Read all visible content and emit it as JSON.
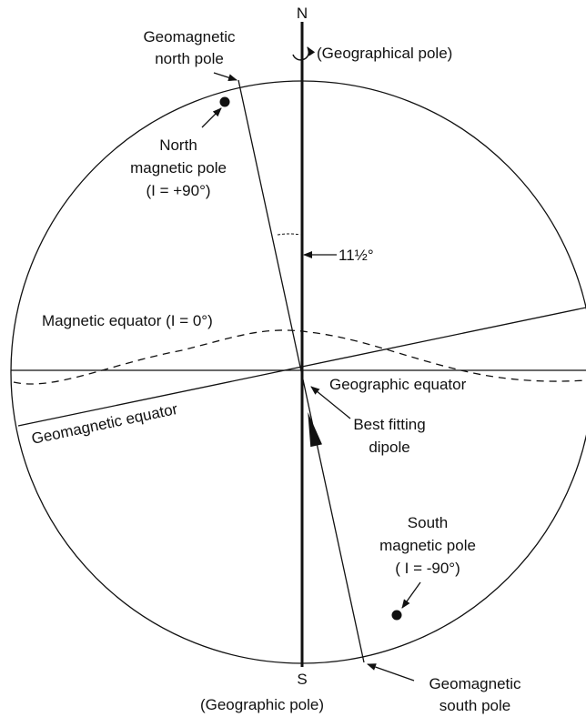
{
  "labels": {
    "north": "N",
    "south": "S",
    "geographical_pole_top": "(Geographical pole)",
    "geomagnetic_north_pole": [
      "Geomagnetic",
      "north pole"
    ],
    "north_magnetic_pole": [
      "North",
      "magnetic pole",
      "(I = +90°)"
    ],
    "angle": "11½°",
    "magnetic_equator": "Magnetic equator (I = 0°)",
    "geographic_equator": "Geographic equator",
    "geomagnetic_equator": "Geomagnetic equator",
    "best_fitting_dipole": [
      "Best fitting",
      "dipole"
    ],
    "south_magnetic_pole": [
      "South",
      "magnetic pole",
      "( I = -90°)"
    ],
    "geographic_pole_bottom": "(Geographic pole)",
    "geomagnetic_south_pole": [
      "Geomagnetic",
      "south pole"
    ]
  }
}
